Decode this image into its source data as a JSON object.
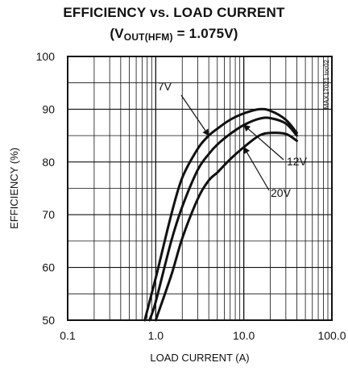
{
  "chart_data": {
    "type": "line",
    "title": "EFFICIENCY vs. LOAD CURRENT",
    "subtitle": "(VOUT(HFM) = 1.075V)",
    "subtitle_parts": {
      "open": "(V",
      "sub": "OUT(HFM)",
      "rest": " = 1.075V)"
    },
    "xlabel": "LOAD CURRENT (A)",
    "ylabel": "EFFICIENCY (%)",
    "xscale": "log",
    "xlim": [
      0.1,
      100.0
    ],
    "ylim": [
      50,
      100
    ],
    "xticks": [
      0.1,
      1.0,
      10.0,
      100.0
    ],
    "xtick_labels": [
      "0.1",
      "1.0",
      "10.0",
      "100.0"
    ],
    "yticks": [
      50,
      60,
      70,
      80,
      90,
      100
    ],
    "ytick_labels": [
      "50",
      "60",
      "70",
      "80",
      "90",
      "100"
    ],
    "grid": true,
    "figure_id": "MAX17021 toc02",
    "series": [
      {
        "name": "7V",
        "x": [
          0.75,
          1.0,
          1.5,
          2.0,
          3.0,
          4.0,
          5.0,
          7.0,
          10.0,
          15.0,
          20.0,
          30.0,
          40.0
        ],
        "y": [
          50.0,
          58.0,
          70.0,
          77.0,
          82.5,
          85.0,
          86.3,
          88.0,
          89.2,
          90.0,
          89.7,
          88.0,
          85.5
        ]
      },
      {
        "name": "12V",
        "x": [
          0.85,
          1.0,
          1.5,
          2.0,
          3.0,
          4.0,
          5.0,
          7.0,
          10.0,
          15.0,
          20.0,
          30.0,
          40.0
        ],
        "y": [
          50.0,
          53.5,
          65.0,
          71.5,
          78.5,
          81.5,
          83.3,
          85.3,
          87.0,
          88.2,
          88.3,
          87.3,
          85.0
        ]
      },
      {
        "name": "20V",
        "x": [
          1.0,
          1.5,
          2.0,
          3.0,
          4.0,
          5.0,
          7.0,
          10.0,
          15.0,
          20.0,
          30.0,
          40.0
        ],
        "y": [
          50.0,
          58.5,
          65.5,
          73.0,
          76.5,
          78.0,
          80.5,
          82.8,
          85.0,
          85.5,
          85.3,
          84.0
        ]
      }
    ],
    "annotations": [
      {
        "text": "7V",
        "series": "7V"
      },
      {
        "text": "12V",
        "series": "12V"
      },
      {
        "text": "20V",
        "series": "20V"
      }
    ]
  }
}
